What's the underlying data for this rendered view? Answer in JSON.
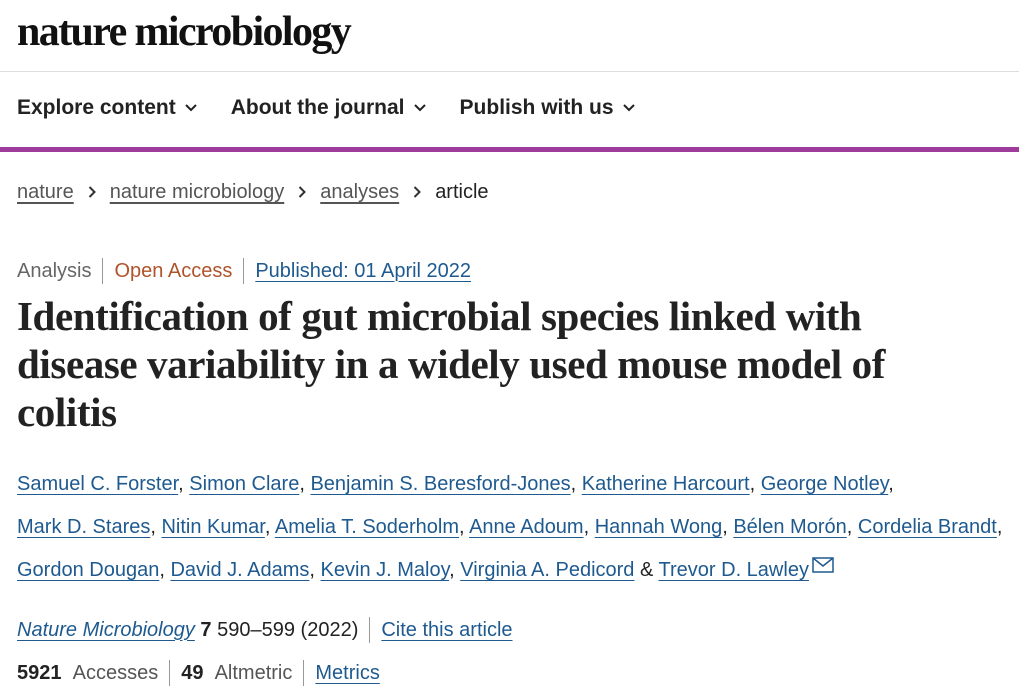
{
  "header": {
    "logo": "nature microbiology"
  },
  "nav": [
    "Explore content",
    "About the journal",
    "Publish with us"
  ],
  "breadcrumbs": [
    "nature",
    "nature microbiology",
    "analyses",
    "article"
  ],
  "article": {
    "type": "Analysis",
    "access": "Open Access",
    "published": "Published: 01 April 2022",
    "title": "Identification of gut microbial species linked with disease variability in a widely used mouse model of colitis",
    "authors": [
      "Samuel C. Forster",
      "Simon Clare",
      "Benjamin S. Beresford-Jones",
      "Katherine Harcourt",
      "George Notley",
      "Mark D. Stares",
      "Nitin Kumar",
      "Amelia T. Soderholm",
      "Anne Adoum",
      "Hannah Wong",
      "Bélen Morón",
      "Cordelia Brandt",
      "Gordon Dougan",
      "David J. Adams",
      "Kevin J. Maloy",
      "Virginia A. Pedicord",
      "Trevor D. Lawley"
    ],
    "author_separator": ",",
    "author_conjunction": "&",
    "citation": {
      "journal": "Nature Microbiology",
      "volume": "7",
      "pages": "590–599",
      "year": "(2022)",
      "cite_link": "Cite this article"
    },
    "metrics": {
      "accesses": 5921,
      "accesses_label": "Accesses",
      "altmetric": 49,
      "altmetric_label": "Altmetric",
      "metrics_link": "Metrics"
    }
  }
}
